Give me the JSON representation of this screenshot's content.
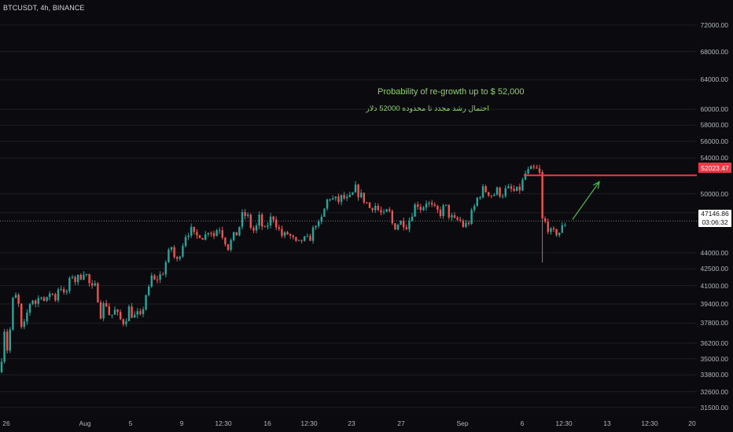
{
  "header": {
    "symbol_label": "BTCUSDT, 4h, BINANCE"
  },
  "colors": {
    "background": "#0b0b0f",
    "up_candle": "#26a69a",
    "down_candle": "#ef5350",
    "target_line": "#f23645",
    "annotation_text": "#8fd16a",
    "arrow": "#4caf50",
    "grid": "#1c1e26"
  },
  "annotations": {
    "english": "Probability of re-growth up to $ 52,000",
    "persian": "احتمال رشد مجدد تا محدوده 52000 دلار"
  },
  "price_axis": {
    "ticks": [
      "72000.00",
      "68000.00",
      "64000.00",
      "60000.00",
      "58000.00",
      "56000.00",
      "54000.00",
      "50000.00",
      "48000.00",
      "44000.00",
      "42500.00",
      "41000.00",
      "39400.00",
      "37800.00",
      "36200.00",
      "35000.00",
      "33800.00",
      "32600.00",
      "31500.00"
    ],
    "target_price": "52023.47",
    "current_price": "47146.86",
    "countdown": "03:06:32"
  },
  "time_axis": {
    "ticks": [
      "26",
      "Aug",
      "5",
      "9",
      "12:30",
      "16",
      "12:30",
      "23",
      "27",
      "Sep",
      "6",
      "12:30",
      "13",
      "12:30",
      "20"
    ]
  },
  "chart_data": {
    "type": "candlestick",
    "title": "BTCUSDT, 4h, BINANCE",
    "scale": "log",
    "ylim": [
      30800,
      76000
    ],
    "grid": true,
    "path": [
      [
        0,
        34000
      ],
      [
        6,
        37600
      ],
      [
        10,
        35300
      ],
      [
        16,
        39600
      ],
      [
        22,
        40200
      ],
      [
        28,
        36800
      ],
      [
        34,
        38500
      ],
      [
        40,
        40000
      ],
      [
        46,
        39400
      ],
      [
        52,
        40400
      ],
      [
        58,
        39300
      ],
      [
        64,
        40600
      ],
      [
        70,
        39800
      ],
      [
        76,
        41300
      ],
      [
        82,
        39900
      ],
      [
        88,
        41200
      ],
      [
        92,
        42000
      ],
      [
        96,
        41400
      ],
      [
        102,
        41800
      ],
      [
        106,
        42400
      ],
      [
        110,
        41900
      ],
      [
        116,
        40600
      ],
      [
        122,
        40900
      ],
      [
        128,
        38600
      ],
      [
        134,
        39700
      ],
      [
        140,
        38300
      ],
      [
        146,
        38800
      ],
      [
        152,
        38100
      ],
      [
        158,
        37900
      ],
      [
        164,
        39000
      ],
      [
        170,
        38300
      ],
      [
        176,
        38500
      ],
      [
        180,
        37950
      ],
      [
        184,
        40400
      ],
      [
        188,
        40000
      ],
      [
        192,
        41900
      ],
      [
        196,
        41300
      ],
      [
        200,
        41700
      ],
      [
        206,
        42000
      ],
      [
        212,
        43400
      ],
      [
        218,
        44600
      ],
      [
        224,
        42900
      ],
      [
        230,
        44400
      ],
      [
        236,
        45800
      ],
      [
        242,
        46300
      ],
      [
        248,
        45400
      ],
      [
        254,
        45900
      ],
      [
        260,
        45500
      ],
      [
        266,
        46500
      ],
      [
        272,
        45700
      ],
      [
        278,
        46700
      ],
      [
        284,
        45600
      ],
      [
        290,
        44600
      ],
      [
        296,
        45400
      ],
      [
        302,
        46000
      ],
      [
        308,
        47600
      ],
      [
        314,
        47800
      ],
      [
        318,
        46700
      ],
      [
        324,
        46000
      ],
      [
        330,
        47500
      ],
      [
        336,
        45900
      ],
      [
        342,
        47200
      ],
      [
        348,
        47600
      ],
      [
        354,
        46300
      ],
      [
        360,
        45500
      ],
      [
        366,
        45900
      ],
      [
        372,
        45300
      ],
      [
        378,
        44600
      ],
      [
        384,
        45300
      ],
      [
        390,
        45100
      ],
      [
        396,
        45700
      ],
      [
        402,
        47100
      ],
      [
        406,
        46500
      ],
      [
        412,
        48200
      ],
      [
        418,
        49800
      ],
      [
        424,
        49300
      ],
      [
        430,
        49200
      ],
      [
        436,
        49700
      ],
      [
        440,
        49200
      ],
      [
        446,
        49500
      ],
      [
        452,
        50500
      ],
      [
        458,
        49800
      ],
      [
        464,
        49300
      ],
      [
        470,
        48500
      ],
      [
        476,
        48900
      ],
      [
        482,
        48100
      ],
      [
        488,
        47600
      ],
      [
        494,
        48300
      ],
      [
        500,
        46500
      ],
      [
        506,
        46900
      ],
      [
        512,
        47100
      ],
      [
        518,
        46700
      ],
      [
        524,
        48100
      ],
      [
        530,
        49100
      ],
      [
        536,
        48400
      ],
      [
        542,
        49200
      ],
      [
        548,
        48600
      ],
      [
        554,
        48100
      ],
      [
        560,
        48000
      ],
      [
        566,
        48700
      ],
      [
        572,
        47600
      ],
      [
        578,
        47100
      ],
      [
        584,
        47300
      ],
      [
        590,
        46500
      ],
      [
        596,
        47100
      ],
      [
        602,
        48300
      ],
      [
        608,
        49800
      ],
      [
        614,
        50400
      ],
      [
        620,
        50300
      ],
      [
        626,
        49800
      ],
      [
        632,
        50300
      ],
      [
        638,
        50000
      ],
      [
        644,
        50400
      ],
      [
        650,
        50400
      ],
      [
        656,
        50100
      ],
      [
        662,
        50700
      ],
      [
        668,
        52200
      ],
      [
        674,
        52500
      ],
      [
        680,
        52700
      ],
      [
        684,
        52500
      ],
      [
        688,
        51700
      ],
      [
        690,
        47500
      ],
      [
        694,
        46800
      ],
      [
        698,
        46400
      ],
      [
        702,
        45600
      ],
      [
        706,
        46100
      ],
      [
        710,
        45900
      ],
      [
        714,
        46300
      ],
      [
        718,
        46900
      ],
      [
        722,
        47146
      ]
    ],
    "crash_wick": {
      "x": 691,
      "low": 43100
    },
    "target_line": {
      "price": 52023.47,
      "x_start": 666
    },
    "projection_arrow": {
      "from": [
        728,
        47300
      ],
      "to": [
        762,
        51300
      ]
    }
  }
}
